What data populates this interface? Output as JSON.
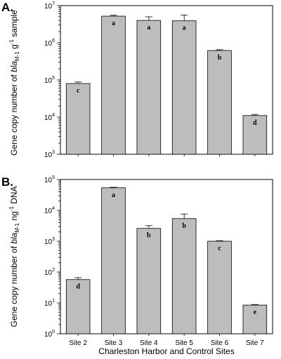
{
  "figure": {
    "xlabel": "Charleston Harbor and Control Sites"
  },
  "chart_data": [
    {
      "type": "bar",
      "panel_label": "A.",
      "scale": "log",
      "ylim": [
        1000,
        10000000
      ],
      "y_ticks": [
        {
          "base": "10",
          "exp": "3"
        },
        {
          "base": "10",
          "exp": "4"
        },
        {
          "base": "10",
          "exp": "5"
        },
        {
          "base": "10",
          "exp": "6"
        },
        {
          "base": "10",
          "exp": "7"
        }
      ],
      "ylabel": {
        "pre": "Gene copy number of ",
        "italic": "bla",
        "sub": "M-1",
        "mid": " g",
        "sup": "-1",
        "post": " sample"
      },
      "categories": [
        "Site 2",
        "Site 3",
        "Site 4",
        "Site 5",
        "Site 6",
        "Site 7"
      ],
      "values": [
        80000,
        5200000,
        4000000,
        3900000,
        620000,
        11000
      ],
      "error_upper": [
        88000,
        5500000,
        5000000,
        5600000,
        650000,
        11800
      ],
      "letters": [
        "c",
        "a",
        "a",
        "a",
        "b",
        "d"
      ],
      "grid": false,
      "bar_color": "#bdbdbd"
    },
    {
      "type": "bar",
      "panel_label": "B.",
      "scale": "log",
      "ylim": [
        1,
        100000
      ],
      "y_ticks": [
        {
          "base": "10",
          "exp": "0"
        },
        {
          "base": "10",
          "exp": "1"
        },
        {
          "base": "10",
          "exp": "2"
        },
        {
          "base": "10",
          "exp": "3"
        },
        {
          "base": "10",
          "exp": "4"
        },
        {
          "base": "10",
          "exp": "5"
        }
      ],
      "ylabel": {
        "pre": "Gene copy number of ",
        "italic": "bla",
        "sub": "M-1",
        "mid": " ng",
        "sup": "-1",
        "post": " DNA"
      },
      "categories": [
        "Site 2",
        "Site 3",
        "Site 4",
        "Site 5",
        "Site 6",
        "Site 7"
      ],
      "values": [
        57,
        54000,
        2600,
        5400,
        1000,
        8.5
      ],
      "error_upper": [
        66,
        56000,
        3200,
        7600,
        1040,
        8.9
      ],
      "letters": [
        "d",
        "a",
        "b",
        "b",
        "c",
        "e"
      ],
      "grid": false,
      "bar_color": "#bdbdbd"
    }
  ]
}
